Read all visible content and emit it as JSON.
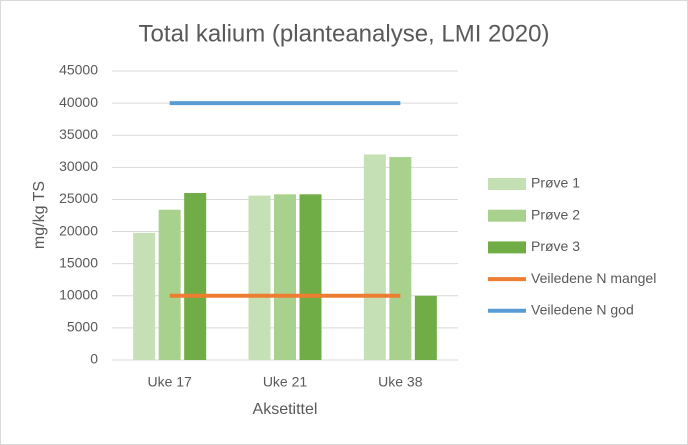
{
  "chart_data": {
    "type": "bar",
    "title": "Total kalium (planteanalyse, LMI 2020)",
    "x_label": "Aksetittel",
    "y_label": "mg/kg TS",
    "categories": [
      "Uke 17",
      "Uke 21",
      "Uke 38"
    ],
    "series": [
      {
        "name": "Prøve 1",
        "color": "#c5e0b4",
        "values": [
          19800,
          25600,
          32000
        ]
      },
      {
        "name": "Prøve 2",
        "color": "#a9d18e",
        "values": [
          23400,
          25800,
          31600
        ]
      },
      {
        "name": "Prøve 3",
        "color": "#70ad47",
        "values": [
          26000,
          25800,
          10000
        ]
      },
      {
        "name": "Veiledene N mangel",
        "type": "line",
        "color": "#ed7d31",
        "values": [
          10000,
          10000,
          10000
        ]
      },
      {
        "name": "Veiledene N god",
        "type": "line",
        "color": "#5b9bd5",
        "values": [
          40000,
          40000,
          40000
        ]
      }
    ],
    "ylim": [
      0,
      45000
    ],
    "yticks": [
      0,
      5000,
      10000,
      15000,
      20000,
      25000,
      30000,
      35000,
      40000,
      45000
    ],
    "grid": true,
    "legend": "right"
  }
}
